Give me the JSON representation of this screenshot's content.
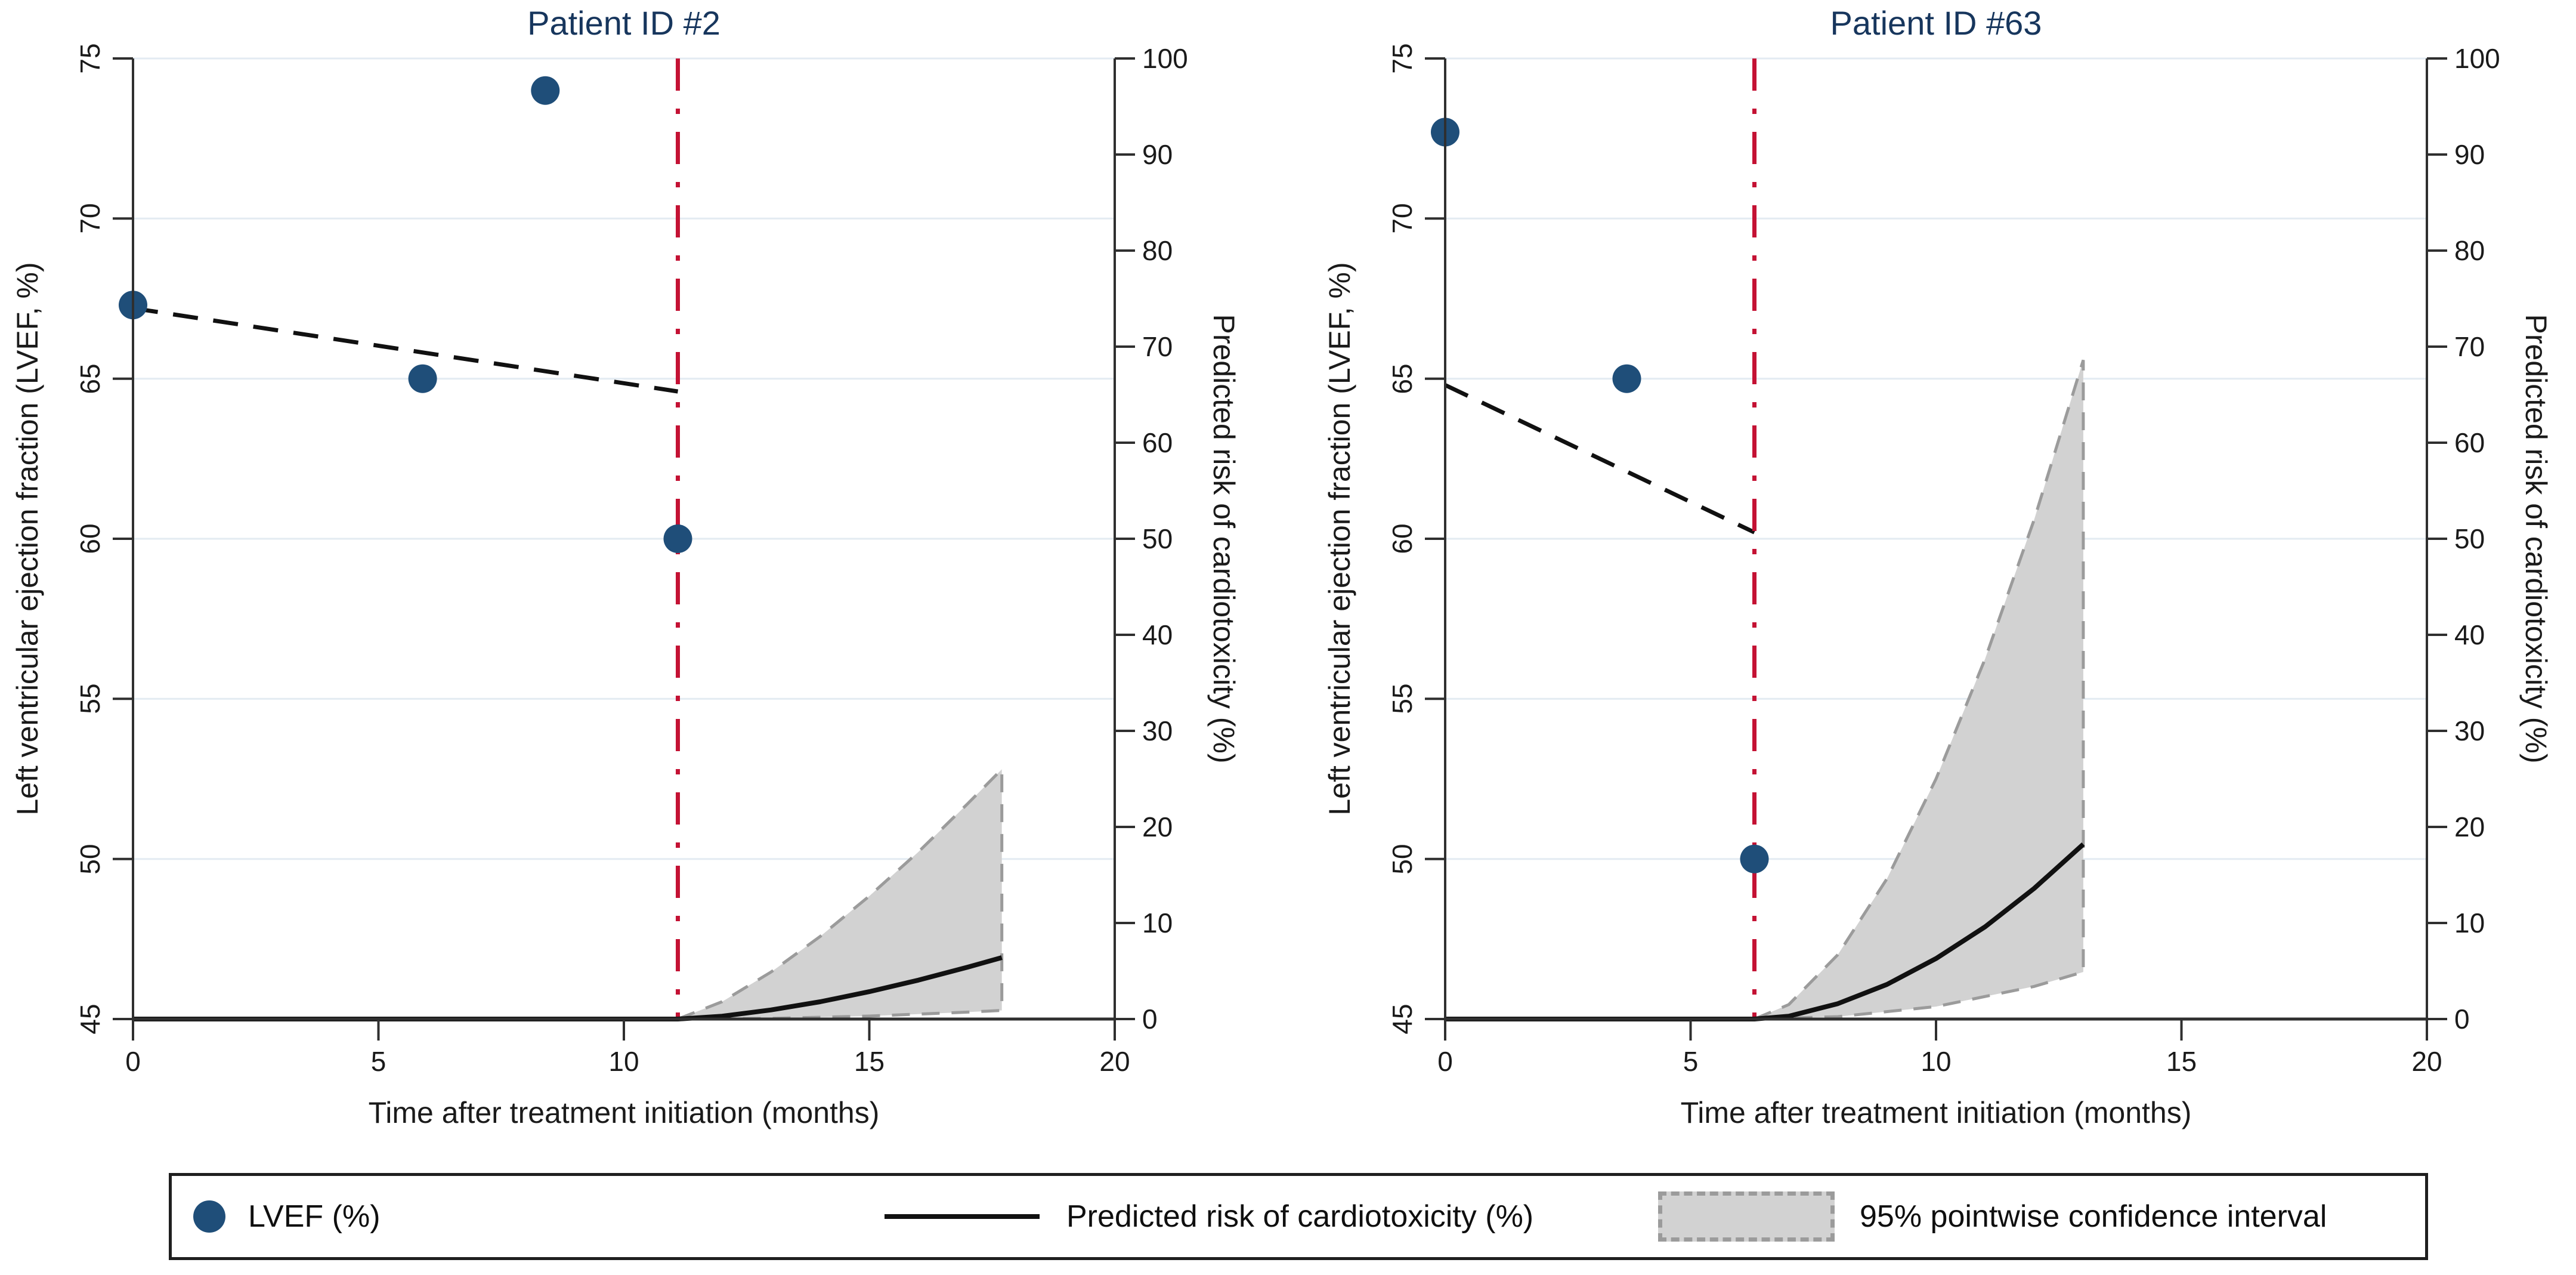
{
  "colors": {
    "title": "#17365D",
    "marker": "#1F4E79",
    "treatment_line": "#C41234",
    "ci_fill": "#D2D2D2",
    "ci_border": "#9B9B9B",
    "grid": "#E3EBF2",
    "axis": "#2F2F2F",
    "trend": "#111111",
    "risk_line": "#111111"
  },
  "legend": {
    "items": [
      {
        "label": "LVEF (%)"
      },
      {
        "label": "Predicted risk of cardiotoxicity (%)"
      },
      {
        "label": "95% pointwise confidence interval"
      }
    ]
  },
  "chart_data": [
    {
      "type": "scatter",
      "title": "Patient ID #2",
      "xlabel": "Time after treatment initiation (months)",
      "ylabel_left": "Left ventricular ejection fraction (LVEF, %)",
      "ylabel_right": "Predicted risk of cardiotoxicity (%)",
      "xlim": [
        0,
        20
      ],
      "xticks": [
        0,
        5,
        10,
        15,
        20
      ],
      "ylim_left": [
        45,
        75
      ],
      "yticks_left": [
        45,
        50,
        55,
        60,
        65,
        70,
        75
      ],
      "ylim_right": [
        0,
        100
      ],
      "yticks_right": [
        0,
        10,
        20,
        30,
        40,
        50,
        60,
        70,
        80,
        90,
        100
      ],
      "grid": true,
      "legend_position": "bottom",
      "lvef_points": [
        [
          0,
          67.3
        ],
        [
          5.9,
          65
        ],
        [
          8.4,
          74
        ],
        [
          11.1,
          60
        ]
      ],
      "lvef_trend": [
        [
          0,
          67.2
        ],
        [
          11.1,
          64.6
        ]
      ],
      "treatment_line_x": 11.1,
      "risk_curve": [
        [
          11.1,
          0
        ],
        [
          12,
          0.3
        ],
        [
          13,
          0.95
        ],
        [
          14,
          1.8
        ],
        [
          15,
          2.85
        ],
        [
          16,
          4.05
        ],
        [
          17,
          5.4
        ],
        [
          17.7,
          6.4
        ]
      ],
      "ci_upper": [
        [
          11.1,
          0
        ],
        [
          12,
          1.8
        ],
        [
          13,
          4.9
        ],
        [
          14,
          8.6
        ],
        [
          15,
          12.8
        ],
        [
          16,
          17.4
        ],
        [
          17,
          22.4
        ],
        [
          17.7,
          26
        ]
      ],
      "ci_lower": [
        [
          11.1,
          0
        ],
        [
          13,
          0.07
        ],
        [
          15,
          0.31
        ],
        [
          17,
          0.72
        ],
        [
          17.7,
          0.9
        ]
      ]
    },
    {
      "type": "scatter",
      "title": "Patient ID #63",
      "xlabel": "Time after treatment initiation (months)",
      "ylabel_left": "Left ventricular ejection fraction (LVEF, %)",
      "ylabel_right": "Predicted risk of cardiotoxicity (%)",
      "xlim": [
        0,
        20
      ],
      "xticks": [
        0,
        5,
        10,
        15,
        20
      ],
      "ylim_left": [
        45,
        75
      ],
      "yticks_left": [
        45,
        50,
        55,
        60,
        65,
        70,
        75
      ],
      "ylim_right": [
        0,
        100
      ],
      "yticks_right": [
        0,
        10,
        20,
        30,
        40,
        50,
        60,
        70,
        80,
        90,
        100
      ],
      "grid": true,
      "legend_position": "bottom",
      "lvef_points": [
        [
          0,
          72.7
        ],
        [
          3.7,
          65
        ],
        [
          6.3,
          50
        ]
      ],
      "lvef_trend": [
        [
          0,
          64.8
        ],
        [
          6.3,
          60.2
        ]
      ],
      "treatment_line_x": 6.3,
      "risk_curve": [
        [
          6.3,
          0
        ],
        [
          7,
          0.3
        ],
        [
          8,
          1.6
        ],
        [
          9,
          3.6
        ],
        [
          10,
          6.3
        ],
        [
          11,
          9.6
        ],
        [
          12,
          13.6
        ],
        [
          13,
          18.2
        ]
      ],
      "ci_upper": [
        [
          6.3,
          0
        ],
        [
          7,
          1.5
        ],
        [
          8,
          6.7
        ],
        [
          9,
          14.6
        ],
        [
          10,
          25
        ],
        [
          11,
          37.5
        ],
        [
          12,
          52
        ],
        [
          13,
          68.6
        ]
      ],
      "ci_lower": [
        [
          6.3,
          0
        ],
        [
          8,
          0.25
        ],
        [
          10,
          1.3
        ],
        [
          12,
          3.4
        ],
        [
          13,
          4.9
        ]
      ]
    }
  ]
}
